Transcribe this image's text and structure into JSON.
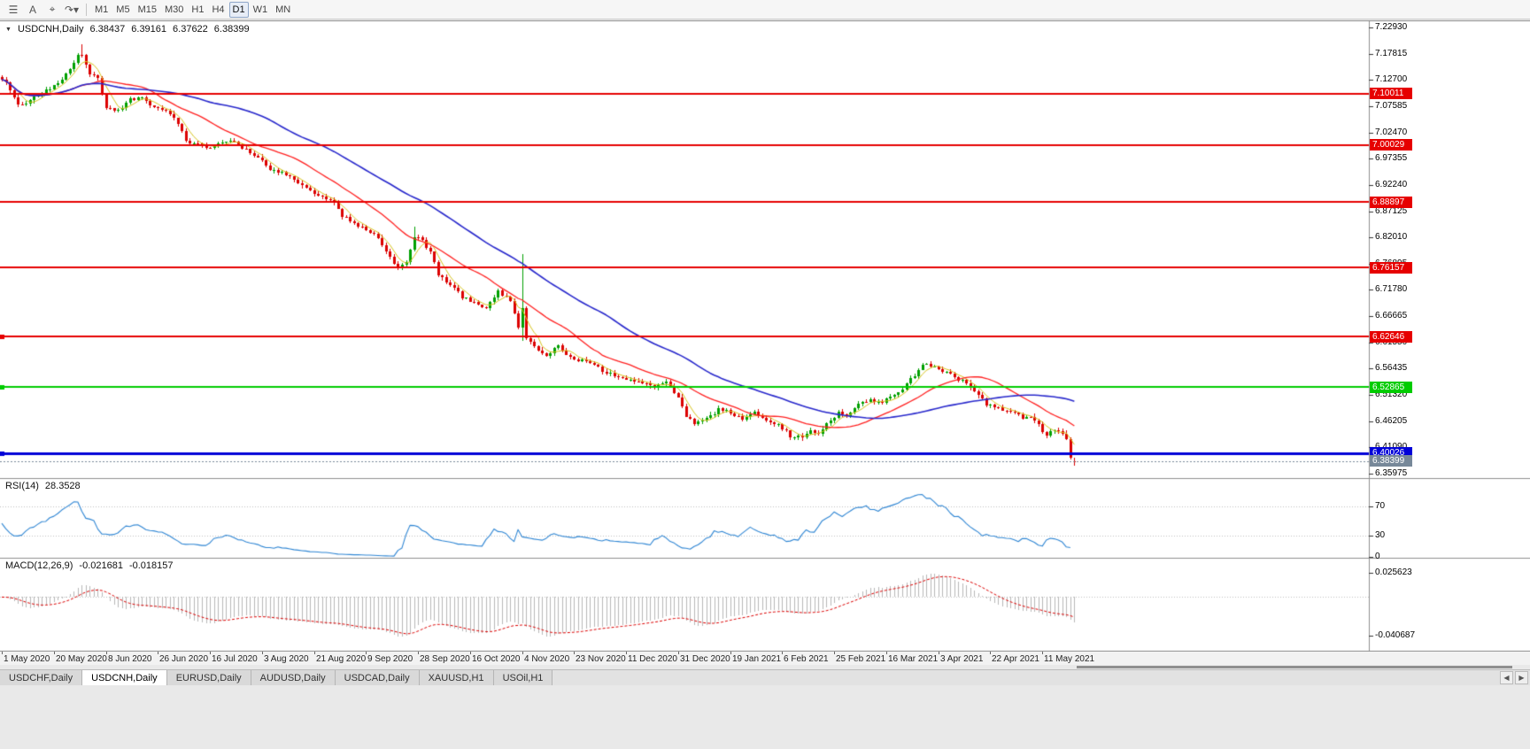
{
  "toolbar": {
    "icons": [
      {
        "name": "menu-icon",
        "glyph": "☰"
      },
      {
        "name": "text-tool-button",
        "glyph": "A"
      },
      {
        "name": "crosshair-tool-button",
        "glyph": "⌖"
      },
      {
        "name": "redo-dropdown-button",
        "glyph": "↷▾"
      }
    ],
    "timeframes": [
      "M1",
      "M5",
      "M15",
      "M30",
      "H1",
      "H4",
      "D1",
      "W1",
      "MN"
    ],
    "active_timeframe": "D1"
  },
  "chart": {
    "collapse_icon": "▼",
    "symbol_label": "USDCNH,Daily",
    "ohlc": {
      "open": "6.38437",
      "high": "6.39161",
      "low": "6.37622",
      "close": "6.38399"
    },
    "price_axis_ticks": [
      "7.22930",
      "7.17815",
      "7.12700",
      "7.07585",
      "7.02470",
      "6.97355",
      "6.92240",
      "6.87125",
      "6.82010",
      "6.76895",
      "6.71780",
      "6.66665",
      "6.61550",
      "6.56435",
      "6.51320",
      "6.46205",
      "6.41090",
      "6.35975"
    ],
    "hlines": [
      {
        "price": 7.10011,
        "label": "7.10011",
        "color": "#e60000",
        "thickness": 2,
        "anchor": false
      },
      {
        "price": 7.00029,
        "label": "7.00029",
        "color": "#e60000",
        "thickness": 2,
        "anchor": false
      },
      {
        "price": 6.88897,
        "label": "6.88897",
        "color": "#e60000",
        "thickness": 2,
        "anchor": false
      },
      {
        "price": 6.76157,
        "label": "6.76157",
        "color": "#e60000",
        "thickness": 2,
        "anchor": false
      },
      {
        "price": 6.62646,
        "label": "6.62646",
        "color": "#e60000",
        "thickness": 2,
        "anchor": true
      },
      {
        "price": 6.52865,
        "label": "6.52865",
        "color": "#00cc00",
        "thickness": 2,
        "anchor": true
      },
      {
        "price": 6.40026,
        "label": "6.40026",
        "color": "#0000d8",
        "thickness": 3,
        "anchor": true
      }
    ],
    "bid_line": {
      "price": 6.38399,
      "label": "6.38399",
      "color": "#778899"
    }
  },
  "rsi_panel": {
    "name": "RSI(14)",
    "value": "28.3528",
    "line_color": "#2f86d4",
    "axis_labels": [
      {
        "text": "70",
        "value": 70
      },
      {
        "text": "30",
        "value": 30
      },
      {
        "text": "0",
        "value": 0
      }
    ]
  },
  "macd_panel": {
    "name": "MACD(12,26,9)",
    "main_value": "-0.021681",
    "signal_value": "-0.018157",
    "histogram_color": "#b8b8b8",
    "signal_color": "#dd0000",
    "axis_labels": [
      {
        "text": "0.025623",
        "value": 0.025623
      },
      {
        "text": "-0.040687",
        "value": -0.040687
      }
    ]
  },
  "time_axis": {
    "labels": [
      "1 May 2020",
      "20 May 2020",
      "8 Jun 2020",
      "26 Jun 2020",
      "16 Jul 2020",
      "3 Aug 2020",
      "21 Aug 2020",
      "9 Sep 2020",
      "28 Sep 2020",
      "16 Oct 2020",
      "4 Nov 2020",
      "23 Nov 2020",
      "11 Dec 2020",
      "31 Dec 2020",
      "19 Jan 2021",
      "6 Feb 2021",
      "25 Feb 2021",
      "16 Mar 2021",
      "3 Apr 2021",
      "22 Apr 2021",
      "11 May 2021"
    ],
    "label_bar_indices": [
      0,
      13,
      26,
      39,
      52,
      65,
      78,
      91,
      104,
      117,
      130,
      143,
      156,
      169,
      182,
      195,
      208,
      221,
      234,
      247,
      260
    ]
  },
  "tabs": {
    "items": [
      "USDCHF,Daily",
      "USDCNH,Daily",
      "EURUSD,Daily",
      "AUDUSD,Daily",
      "USDCAD,Daily",
      "XAUUSD,H1",
      "USOil,H1"
    ],
    "active": "USDCNH,Daily"
  },
  "chart_data": [
    {
      "type": "candlestick",
      "symbol": "USDCNH",
      "timeframe": "Daily",
      "total_bars": 269,
      "y_axis": {
        "top": 7.2293,
        "bottom": 6.35975,
        "tick_step": 0.05115
      },
      "last_bar": {
        "open": 6.38437,
        "high": 6.39161,
        "low": 6.37622,
        "close": 6.38399
      },
      "close_keyframes": [
        [
          0,
          7.128
        ],
        [
          2,
          7.11
        ],
        [
          4,
          7.082
        ],
        [
          6,
          7.078
        ],
        [
          9,
          7.098
        ],
        [
          13,
          7.116
        ],
        [
          16,
          7.138
        ],
        [
          19,
          7.172
        ],
        [
          20,
          7.178
        ],
        [
          22,
          7.14
        ],
        [
          24,
          7.128
        ],
        [
          26,
          7.073
        ],
        [
          29,
          7.068
        ],
        [
          32,
          7.088
        ],
        [
          35,
          7.092
        ],
        [
          38,
          7.074
        ],
        [
          41,
          7.068
        ],
        [
          44,
          7.042
        ],
        [
          46,
          7.008
        ],
        [
          49,
          7.002
        ],
        [
          52,
          6.992
        ],
        [
          55,
          7.006
        ],
        [
          58,
          7.01
        ],
        [
          61,
          6.99
        ],
        [
          64,
          6.976
        ],
        [
          67,
          6.954
        ],
        [
          70,
          6.946
        ],
        [
          73,
          6.934
        ],
        [
          76,
          6.916
        ],
        [
          79,
          6.902
        ],
        [
          82,
          6.896
        ],
        [
          85,
          6.862
        ],
        [
          88,
          6.848
        ],
        [
          91,
          6.836
        ],
        [
          94,
          6.818
        ],
        [
          97,
          6.78
        ],
        [
          99,
          6.757
        ],
        [
          101,
          6.772
        ],
        [
          103,
          6.824
        ],
        [
          105,
          6.815
        ],
        [
          107,
          6.79
        ],
        [
          109,
          6.75
        ],
        [
          112,
          6.73
        ],
        [
          115,
          6.703
        ],
        [
          118,
          6.694
        ],
        [
          121,
          6.684
        ],
        [
          124,
          6.714
        ],
        [
          127,
          6.7
        ],
        [
          129,
          6.644
        ],
        [
          130,
          6.684
        ],
        [
          131,
          6.625
        ],
        [
          133,
          6.607
        ],
        [
          136,
          6.592
        ],
        [
          139,
          6.608
        ],
        [
          142,
          6.584
        ],
        [
          145,
          6.58
        ],
        [
          148,
          6.574
        ],
        [
          151,
          6.556
        ],
        [
          154,
          6.55
        ],
        [
          157,
          6.544
        ],
        [
          160,
          6.538
        ],
        [
          163,
          6.53
        ],
        [
          166,
          6.542
        ],
        [
          169,
          6.506
        ],
        [
          171,
          6.474
        ],
        [
          173,
          6.458
        ],
        [
          176,
          6.47
        ],
        [
          179,
          6.484
        ],
        [
          182,
          6.48
        ],
        [
          185,
          6.464
        ],
        [
          188,
          6.478
        ],
        [
          191,
          6.466
        ],
        [
          194,
          6.454
        ],
        [
          197,
          6.434
        ],
        [
          200,
          6.428
        ],
        [
          202,
          6.444
        ],
        [
          204,
          6.44
        ],
        [
          207,
          6.464
        ],
        [
          209,
          6.48
        ],
        [
          211,
          6.474
        ],
        [
          214,
          6.494
        ],
        [
          217,
          6.504
        ],
        [
          220,
          6.5
        ],
        [
          223,
          6.51
        ],
        [
          226,
          6.532
        ],
        [
          229,
          6.564
        ],
        [
          231,
          6.574
        ],
        [
          234,
          6.564
        ],
        [
          237,
          6.554
        ],
        [
          240,
          6.54
        ],
        [
          243,
          6.52
        ],
        [
          246,
          6.494
        ],
        [
          249,
          6.488
        ],
        [
          252,
          6.48
        ],
        [
          255,
          6.468
        ],
        [
          257,
          6.474
        ],
        [
          259,
          6.454
        ],
        [
          261,
          6.434
        ],
        [
          263,
          6.444
        ],
        [
          265,
          6.434
        ],
        [
          266,
          6.428
        ],
        [
          267,
          6.392
        ],
        [
          268,
          6.38399
        ]
      ],
      "spikes": [
        {
          "bar": 20,
          "high": 7.1965
        },
        {
          "bar": 103,
          "high": 6.842
        },
        {
          "bar": 130,
          "high": 6.788,
          "low": 6.618
        }
      ],
      "up_color": "#00a000",
      "down_color": "#dc0000",
      "moving_averages": [
        {
          "period": 5,
          "color": "#d8c41c",
          "width": 1
        },
        {
          "period": 20,
          "color": "#ff2020",
          "width": 1.3
        },
        {
          "period": 50,
          "color": "#2828cc",
          "width": 1.6
        }
      ],
      "horizontal_levels": [
        7.10011,
        7.00029,
        6.88897,
        6.76157,
        6.62646,
        6.52865,
        6.40026
      ],
      "bid_price": 6.38399
    },
    {
      "type": "line",
      "indicator": "RSI",
      "period": 14,
      "current_value": 28.3528,
      "levels": [
        70,
        30,
        0
      ],
      "derived_from": "close_keyframes of chart_data[0]"
    },
    {
      "type": "bar",
      "indicator": "MACD",
      "fast": 12,
      "slow": 26,
      "signal": 9,
      "current_main": -0.021681,
      "current_signal": -0.018157,
      "axis_labels": [
        0.025623,
        -0.040687
      ],
      "derived_from": "close_keyframes of chart_data[0]"
    }
  ]
}
